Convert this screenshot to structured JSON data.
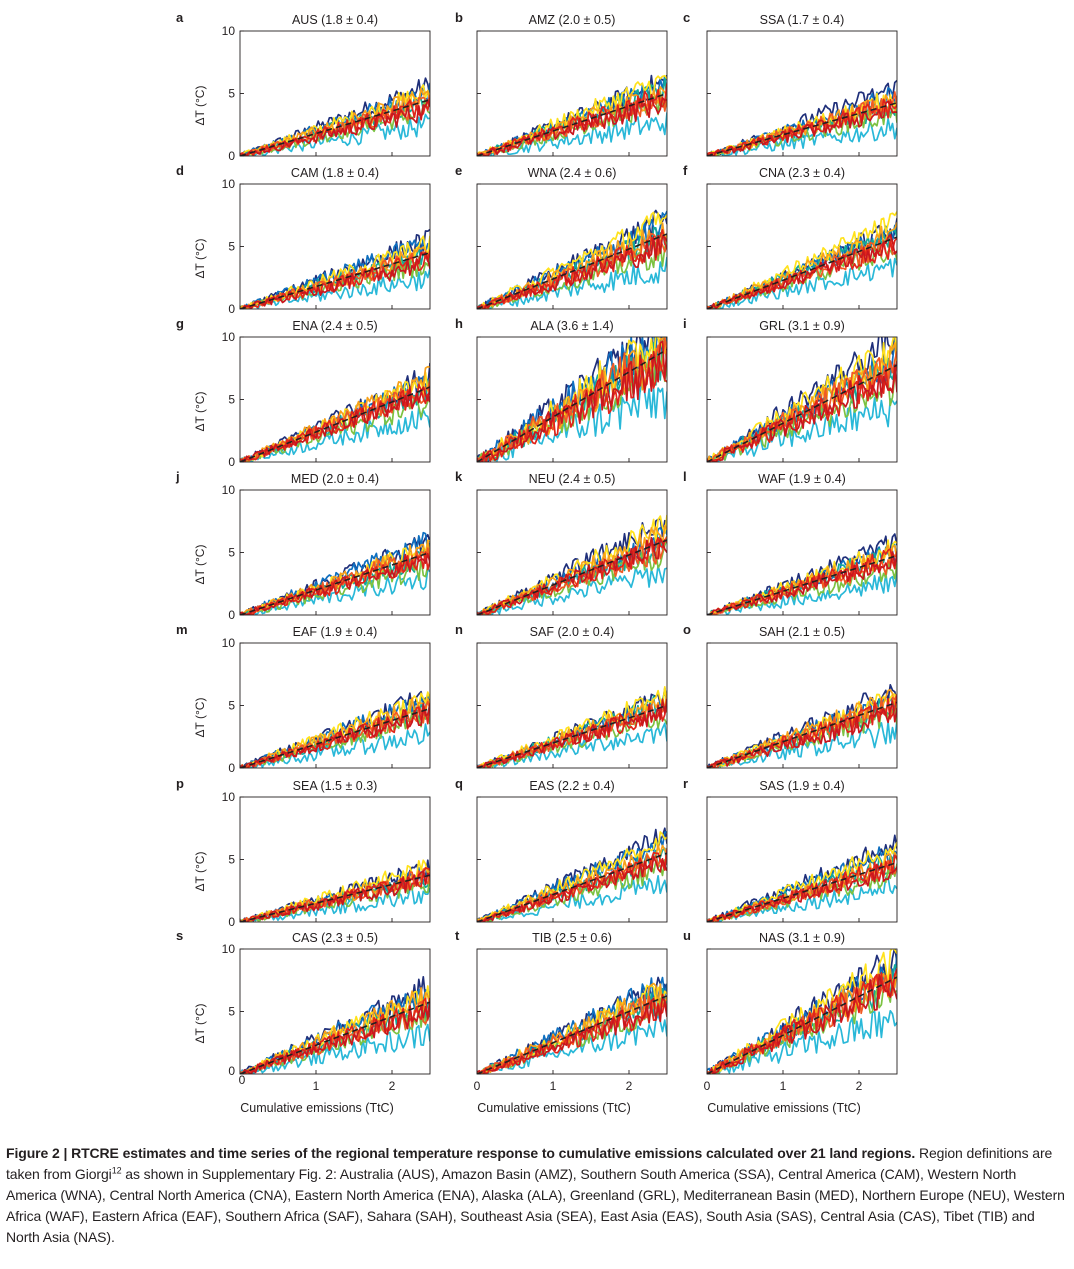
{
  "figure_caption": {
    "label": "Figure 2 | ",
    "title": "RTCRE estimates and time series of the regional temperature response to cumulative emissions calculated over 21 land regions.",
    "text_1": " Region definitions are taken from Giorgi",
    "ref": "12",
    "text_2": " as shown in Supplementary Fig. 2: Australia (AUS), Amazon Basin (AMZ), Southern South America (SSA), Central America (CAM), Western North America (WNA), Central North America (CNA), Eastern North America (ENA), Alaska (ALA), Greenland (GRL), Mediterranean Basin (MED), Northern Europe (NEU), Western Africa (WAF), Eastern Africa (EAF), Southern Africa (SAF), Sahara (SAH), Southeast Asia (SEA), East Asia (EAS), South Asia (SAS), Central Asia (CAS), Tibet (TIB) and North Asia (NAS)."
  },
  "axes": {
    "ylabel": "ΔT (°C)",
    "xlabel": "Cumulative emissions (TtC)",
    "y_ticks": [
      "0",
      "5",
      "10"
    ],
    "x_ticks": [
      "0",
      "1",
      "2"
    ]
  },
  "series_colors": [
    "#1f2f7a",
    "#0e6fbf",
    "#13a99a",
    "#29b8d8",
    "#7cc242",
    "#ffe21c",
    "#f7a11a",
    "#f05a24",
    "#e1251b",
    "#c9171e"
  ],
  "chart_data": {
    "type": "line",
    "xlabel": "Cumulative emissions (TtC)",
    "ylabel": "ΔT (°C)",
    "xlim": [
      0,
      2.5
    ],
    "ylim": [
      0,
      10
    ],
    "grid": false,
    "legend": "none",
    "panels": [
      {
        "letter": "a",
        "title": "AUS (1.8 ± 0.4)",
        "rtcre": 1.8,
        "uncertainty": 0.4
      },
      {
        "letter": "b",
        "title": "AMZ (2.0 ± 0.5)",
        "rtcre": 2.0,
        "uncertainty": 0.5
      },
      {
        "letter": "c",
        "title": "SSA (1.7 ± 0.4)",
        "rtcre": 1.7,
        "uncertainty": 0.4
      },
      {
        "letter": "d",
        "title": "CAM (1.8 ± 0.4)",
        "rtcre": 1.8,
        "uncertainty": 0.4
      },
      {
        "letter": "e",
        "title": "WNA (2.4 ± 0.6)",
        "rtcre": 2.4,
        "uncertainty": 0.6
      },
      {
        "letter": "f",
        "title": "CNA (2.3 ± 0.4)",
        "rtcre": 2.3,
        "uncertainty": 0.4
      },
      {
        "letter": "g",
        "title": "ENA (2.4 ± 0.5)",
        "rtcre": 2.4,
        "uncertainty": 0.5
      },
      {
        "letter": "h",
        "title": "ALA (3.6 ± 1.4)",
        "rtcre": 3.6,
        "uncertainty": 1.4
      },
      {
        "letter": "i",
        "title": "GRL (3.1 ± 0.9)",
        "rtcre": 3.1,
        "uncertainty": 0.9
      },
      {
        "letter": "j",
        "title": "MED (2.0 ± 0.4)",
        "rtcre": 2.0,
        "uncertainty": 0.4
      },
      {
        "letter": "k",
        "title": "NEU (2.4 ± 0.5)",
        "rtcre": 2.4,
        "uncertainty": 0.5
      },
      {
        "letter": "l",
        "title": "WAF (1.9 ± 0.4)",
        "rtcre": 1.9,
        "uncertainty": 0.4
      },
      {
        "letter": "m",
        "title": "EAF (1.9 ± 0.4)",
        "rtcre": 1.9,
        "uncertainty": 0.4
      },
      {
        "letter": "n",
        "title": "SAF (2.0 ± 0.4)",
        "rtcre": 2.0,
        "uncertainty": 0.4
      },
      {
        "letter": "o",
        "title": "SAH (2.1 ± 0.5)",
        "rtcre": 2.1,
        "uncertainty": 0.5
      },
      {
        "letter": "p",
        "title": "SEA (1.5 ± 0.3)",
        "rtcre": 1.5,
        "uncertainty": 0.3
      },
      {
        "letter": "q",
        "title": "EAS (2.2 ± 0.4)",
        "rtcre": 2.2,
        "uncertainty": 0.4
      },
      {
        "letter": "r",
        "title": "SAS (1.9 ± 0.4)",
        "rtcre": 1.9,
        "uncertainty": 0.4
      },
      {
        "letter": "s",
        "title": "CAS (2.3 ± 0.5)",
        "rtcre": 2.3,
        "uncertainty": 0.5
      },
      {
        "letter": "t",
        "title": "TIB (2.5 ± 0.6)",
        "rtcre": 2.5,
        "uncertainty": 0.6
      },
      {
        "letter": "u",
        "title": "NAS (3.1 ± 0.9)",
        "rtcre": 3.1,
        "uncertainty": 0.9
      }
    ]
  }
}
